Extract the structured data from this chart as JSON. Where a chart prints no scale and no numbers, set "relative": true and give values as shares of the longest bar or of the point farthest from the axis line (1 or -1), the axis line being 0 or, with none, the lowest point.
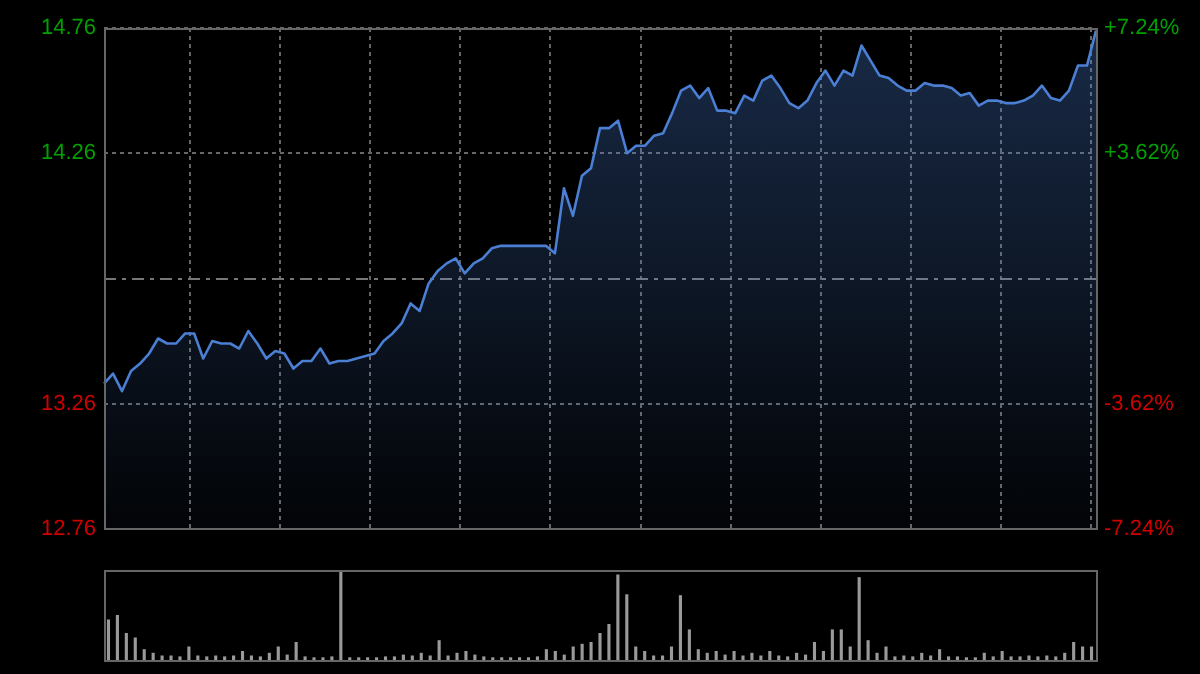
{
  "chart_data": [
    {
      "type": "area",
      "categories": [
        null,
        null,
        null,
        null,
        null,
        null,
        null,
        null,
        null,
        null,
        null,
        null,
        null,
        null,
        null,
        null,
        null,
        null,
        null,
        null,
        null,
        null,
        null,
        null,
        null,
        null,
        null,
        null,
        null,
        null,
        null,
        null,
        null,
        null,
        null,
        null,
        null,
        null,
        null,
        null,
        null,
        null,
        null,
        null,
        null,
        null,
        null,
        null,
        null,
        null,
        null,
        null,
        null,
        null,
        null,
        null,
        null,
        null,
        null,
        null,
        null,
        null,
        null,
        null,
        null,
        null,
        null,
        null,
        null,
        null,
        null,
        null,
        null,
        null,
        null,
        null,
        null,
        null,
        null,
        null,
        null,
        null,
        null,
        null,
        null,
        null,
        null,
        null,
        null,
        null,
        null,
        null,
        null,
        null,
        null,
        null,
        null,
        null,
        null,
        null,
        null,
        null,
        null,
        null,
        null,
        null,
        null,
        null,
        null,
        null,
        null
      ],
      "series": [
        {
          "color": "#4a7fd4",
          "values": [
            13.34,
            13.38,
            13.31,
            13.39,
            13.42,
            13.46,
            13.52,
            13.5,
            13.5,
            13.54,
            13.54,
            13.44,
            13.51,
            13.5,
            13.5,
            13.48,
            13.55,
            13.5,
            13.44,
            13.47,
            13.46,
            13.4,
            13.43,
            13.43,
            13.48,
            13.42,
            13.43,
            13.43,
            13.44,
            13.45,
            13.46,
            13.51,
            13.54,
            13.58,
            13.66,
            13.63,
            13.74,
            13.79,
            13.82,
            13.84,
            13.78,
            13.82,
            13.84,
            13.88,
            13.89,
            13.89,
            13.89,
            13.89,
            13.89,
            13.89,
            13.86,
            14.12,
            14.01,
            14.17,
            14.2,
            14.36,
            14.36,
            14.39,
            14.26,
            14.29,
            14.29,
            14.33,
            14.34,
            14.42,
            14.51,
            14.53,
            14.48,
            14.52,
            14.43,
            14.43,
            14.42,
            14.49,
            14.47,
            14.55,
            14.57,
            14.52,
            14.46,
            14.44,
            14.47,
            14.54,
            14.59,
            14.53,
            14.59,
            14.57,
            14.69,
            14.63,
            14.57,
            14.56,
            14.53,
            14.51,
            14.51,
            14.54,
            14.53,
            14.53,
            14.52,
            14.49,
            14.5,
            14.45,
            14.47,
            14.47,
            14.46,
            14.46,
            14.47,
            14.49,
            14.53,
            14.48,
            14.47,
            14.51,
            14.61,
            14.61,
            14.75
          ]
        }
      ],
      "ylim": [
        12.76,
        14.76
      ],
      "yticks": [
        12.76,
        13.26,
        14.26,
        14.76
      ],
      "y2lim": [
        -7.24,
        7.24
      ],
      "y2ticks": [
        {
          "value": -7.24,
          "label": "-7.24%"
        },
        {
          "value": -3.62,
          "label": "-3.62%"
        },
        {
          "value": 3.62,
          "label": "+3.62%"
        },
        {
          "value": 7.24,
          "label": "+7.24%"
        }
      ],
      "ref_lines": [
        {
          "axis": "y",
          "value": 13.76,
          "line_style": "dashed"
        }
      ],
      "grid": true,
      "tick_labels": "y",
      "legend": false,
      "marker": "none"
    },
    {
      "type": "bar",
      "relative": true,
      "categories": [
        null,
        null,
        null,
        null,
        null,
        null,
        null,
        null,
        null,
        null,
        null,
        null,
        null,
        null,
        null,
        null,
        null,
        null,
        null,
        null,
        null,
        null,
        null,
        null,
        null,
        null,
        null,
        null,
        null,
        null,
        null,
        null,
        null,
        null,
        null,
        null,
        null,
        null,
        null,
        null,
        null,
        null,
        null,
        null,
        null,
        null,
        null,
        null,
        null,
        null,
        null,
        null,
        null,
        null,
        null,
        null,
        null,
        null,
        null,
        null,
        null,
        null,
        null,
        null,
        null,
        null,
        null,
        null,
        null,
        null,
        null,
        null,
        null,
        null,
        null,
        null,
        null,
        null,
        null,
        null,
        null,
        null,
        null,
        null,
        null,
        null,
        null,
        null,
        null,
        null,
        null,
        null,
        null,
        null,
        null,
        null,
        null,
        null,
        null,
        null,
        null,
        null,
        null,
        null,
        null,
        null,
        null,
        null,
        null,
        null,
        null
      ],
      "series": [
        {
          "color": "#9a9a9a",
          "values": [
            0.45,
            0.5,
            0.3,
            0.25,
            0.12,
            0.08,
            0.05,
            0.05,
            0.04,
            0.15,
            0.05,
            0.04,
            0.05,
            0.04,
            0.05,
            0.1,
            0.05,
            0.04,
            0.08,
            0.15,
            0.06,
            0.2,
            0.04,
            0.03,
            0.03,
            0.04,
            1.0,
            0.03,
            0.03,
            0.03,
            0.03,
            0.04,
            0.04,
            0.06,
            0.05,
            0.08,
            0.05,
            0.22,
            0.05,
            0.08,
            0.1,
            0.06,
            0.04,
            0.03,
            0.03,
            0.03,
            0.03,
            0.03,
            0.04,
            0.12,
            0.1,
            0.06,
            0.15,
            0.18,
            0.2,
            0.3,
            0.4,
            0.95,
            0.73,
            0.15,
            0.1,
            0.05,
            0.05,
            0.15,
            0.72,
            0.34,
            0.12,
            0.08,
            0.1,
            0.06,
            0.1,
            0.05,
            0.08,
            0.05,
            0.1,
            0.05,
            0.04,
            0.08,
            0.06,
            0.2,
            0.1,
            0.34,
            0.34,
            0.15,
            0.92,
            0.22,
            0.08,
            0.15,
            0.04,
            0.05,
            0.04,
            0.08,
            0.05,
            0.12,
            0.04,
            0.04,
            0.03,
            0.03,
            0.08,
            0.04,
            0.1,
            0.04,
            0.04,
            0.05,
            0.04,
            0.05,
            0.04,
            0.08,
            0.2,
            0.15,
            0.15
          ]
        }
      ],
      "tick_labels": false,
      "legend": false
    }
  ]
}
